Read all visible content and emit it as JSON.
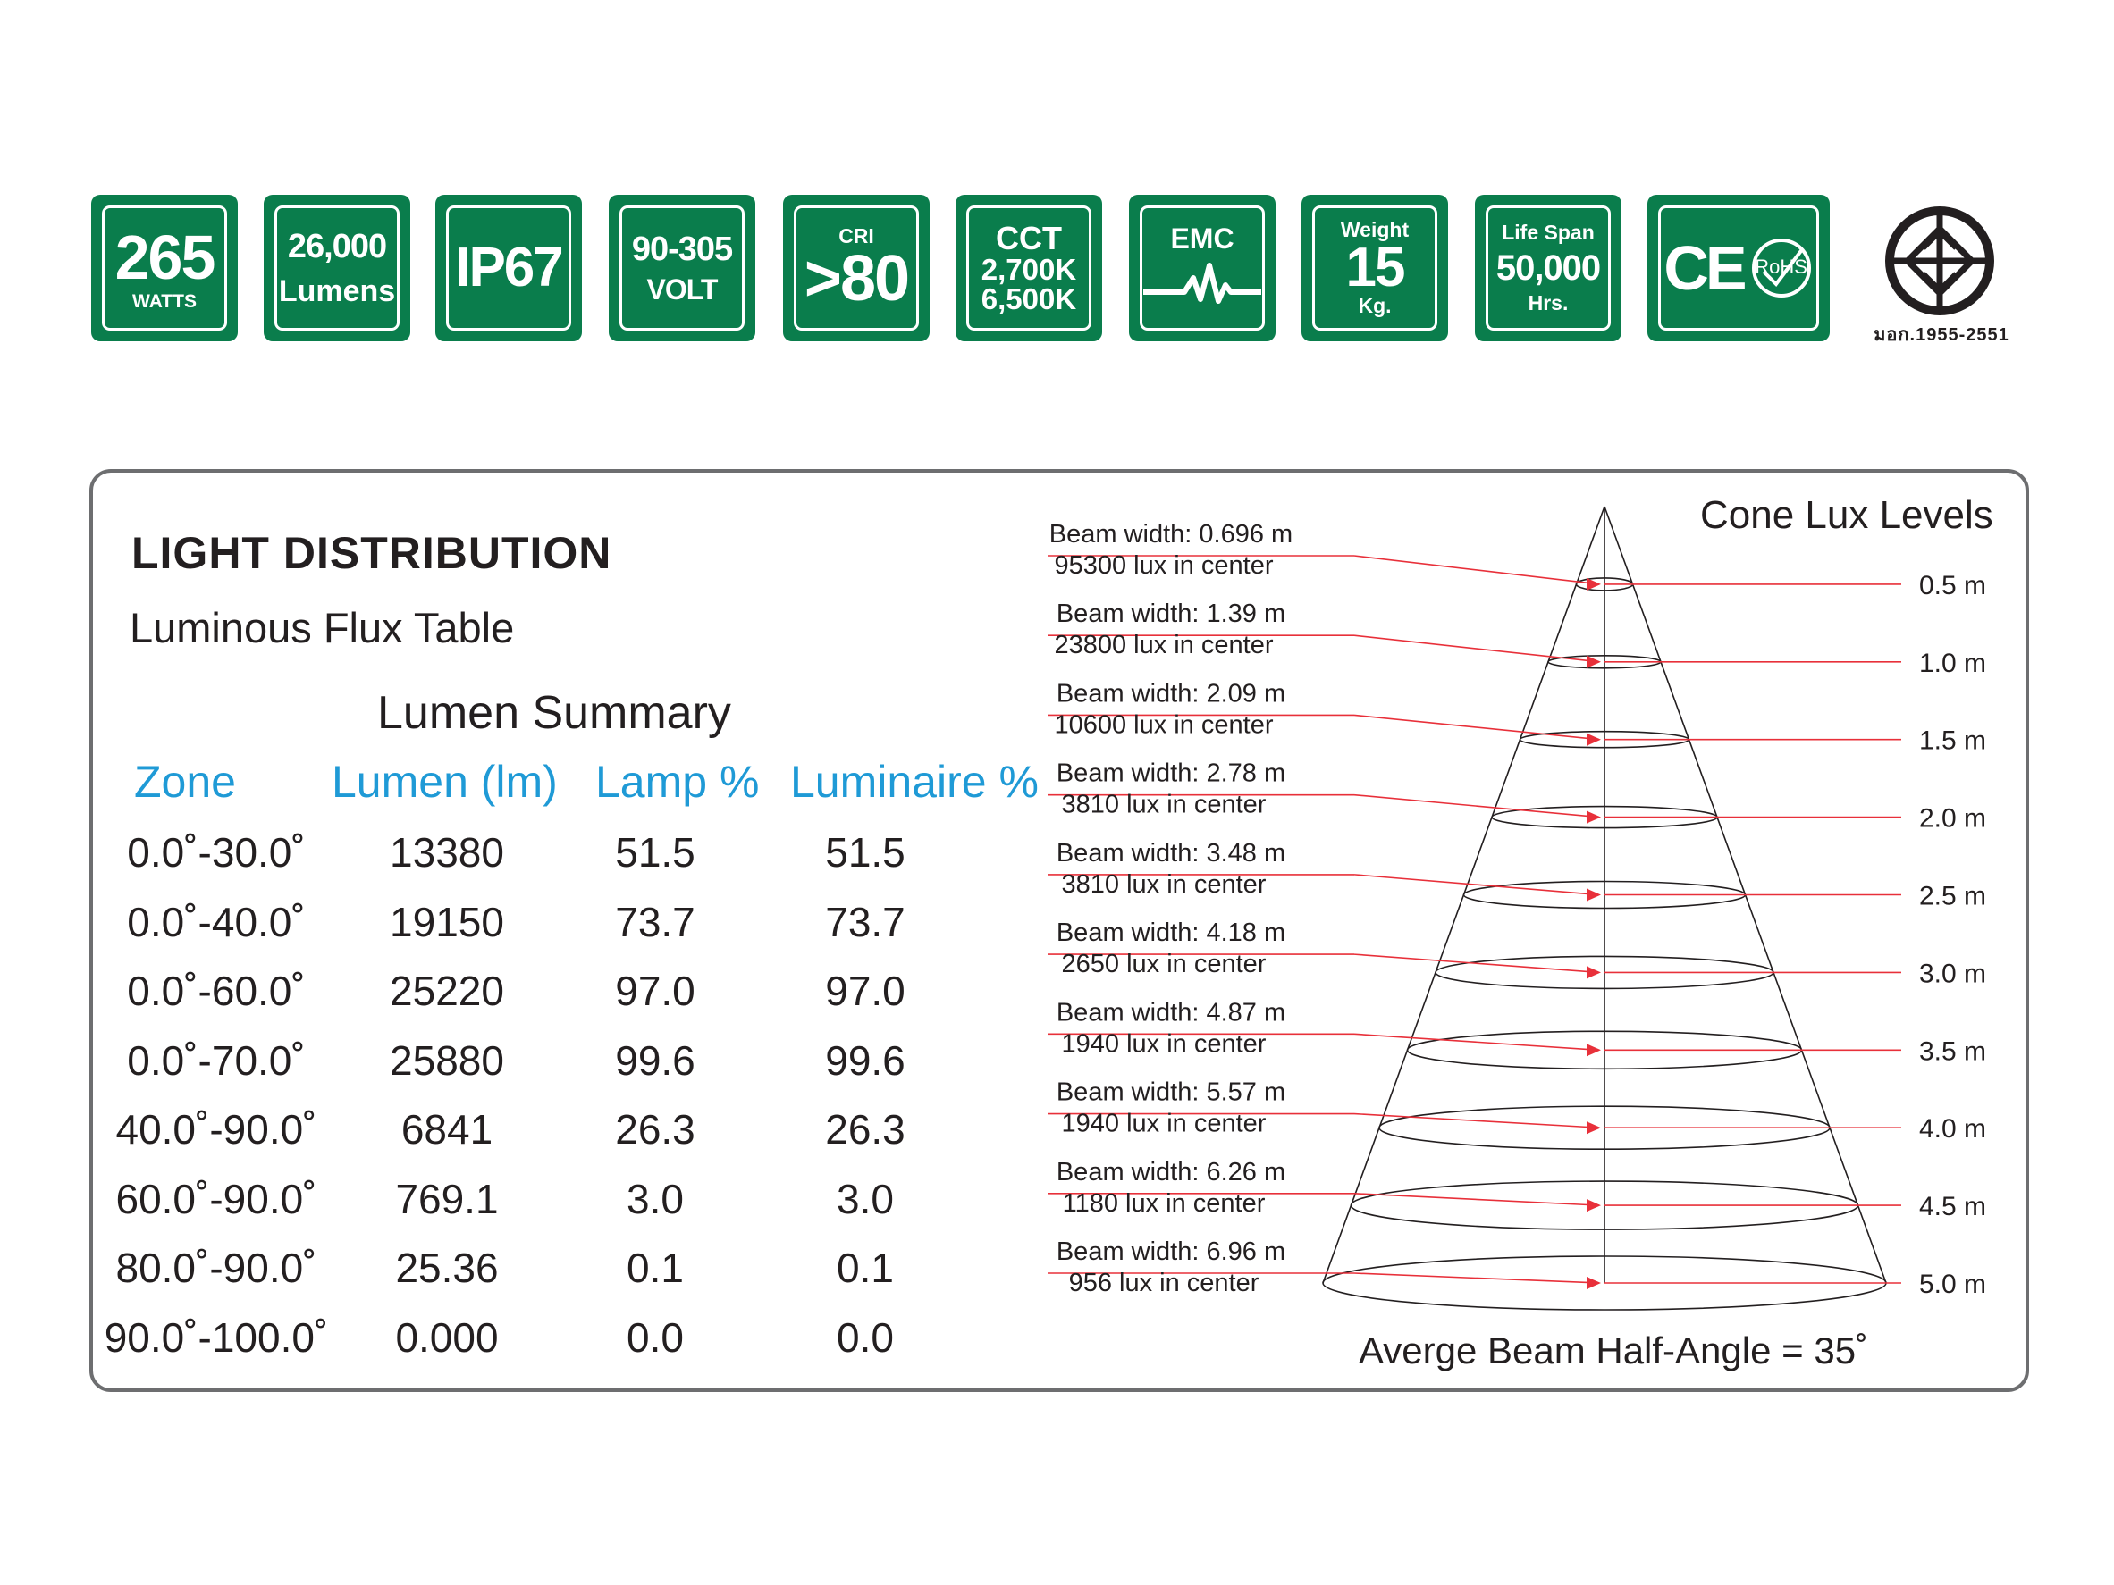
{
  "badges": [
    {
      "id": "power",
      "big": "265",
      "small": "WATTS"
    },
    {
      "id": "lumens",
      "top": "26,000",
      "bottom": "Lumens"
    },
    {
      "id": "ip",
      "big": "IP67"
    },
    {
      "id": "volt",
      "top": "90-305",
      "bottom": "VOLT"
    },
    {
      "id": "cri",
      "small": "CRI",
      "big": ">80"
    },
    {
      "id": "cct",
      "l1": "CCT",
      "l2": "2,700K",
      "l3": "6,500K"
    },
    {
      "id": "emc",
      "label": "EMC"
    },
    {
      "id": "weight",
      "small": "Weight",
      "big": "15",
      "unit": "Kg."
    },
    {
      "id": "life",
      "small": "Life Span",
      "big": "50,000",
      "unit": "Hrs."
    },
    {
      "id": "ce",
      "ce": "CE",
      "rohs": "RoHS"
    }
  ],
  "certification": {
    "code": "มอก.1955-2551"
  },
  "colors": {
    "badge_green": "#0a7d4c",
    "header_blue": "#1f9ad6",
    "callout_red": "#e8303a",
    "panel_border": "#6d6e70"
  },
  "panel": {
    "heading": "LIGHT DISTRIBUTION",
    "subheading": "Luminous Flux Table",
    "summary_title": "Lumen Summary",
    "columns": [
      "Zone",
      "Lumen (lm)",
      "Lamp %",
      "Luminaire %"
    ]
  },
  "chart_data": [
    {
      "type": "table",
      "title": "Lumen Summary",
      "columns": [
        "Zone",
        "Lumen (lm)",
        "Lamp %",
        "Luminaire %"
      ],
      "rows": [
        [
          "0.0˚-30.0˚",
          "13380",
          "51.5",
          "51.5"
        ],
        [
          "0.0˚-40.0˚",
          "19150",
          "73.7",
          "73.7"
        ],
        [
          "0.0˚-60.0˚",
          "25220",
          "97.0",
          "97.0"
        ],
        [
          "0.0˚-70.0˚",
          "25880",
          "99.6",
          "99.6"
        ],
        [
          "40.0˚-90.0˚",
          "6841",
          "26.3",
          "26.3"
        ],
        [
          "60.0˚-90.0˚",
          "769.1",
          "3.0",
          "3.0"
        ],
        [
          "80.0˚-90.0˚",
          "25.36",
          "0.1",
          "0.1"
        ],
        [
          "90.0˚-100.0˚",
          "0.000",
          "0.0",
          "0.0"
        ]
      ]
    },
    {
      "type": "cone",
      "title": "Cone Lux Levels",
      "footer": "Averge Beam Half-Angle = 35˚",
      "levels": [
        {
          "distance": "0.5 m",
          "beam": "Beam width: 0.696 m",
          "lux": "95300 lux in center"
        },
        {
          "distance": "1.0 m",
          "beam": "Beam width: 1.39 m",
          "lux": "23800 lux in center"
        },
        {
          "distance": "1.5 m",
          "beam": "Beam width: 2.09 m",
          "lux": "10600 lux in center"
        },
        {
          "distance": "2.0 m",
          "beam": "Beam width: 2.78 m",
          "lux": "3810 lux in center"
        },
        {
          "distance": "2.5 m",
          "beam": "Beam width: 3.48 m",
          "lux": "3810 lux in center"
        },
        {
          "distance": "3.0 m",
          "beam": "Beam width: 4.18 m",
          "lux": "2650 lux in center"
        },
        {
          "distance": "3.5 m",
          "beam": "Beam width: 4.87 m",
          "lux": "1940 lux in center"
        },
        {
          "distance": "4.0 m",
          "beam": "Beam width: 5.57 m",
          "lux": "1940 lux in center"
        },
        {
          "distance": "4.5 m",
          "beam": "Beam width: 6.26 m",
          "lux": "1180 lux in center"
        },
        {
          "distance": "5.0 m",
          "beam": "Beam width: 6.96 m",
          "lux": "956 lux in center"
        }
      ]
    }
  ]
}
